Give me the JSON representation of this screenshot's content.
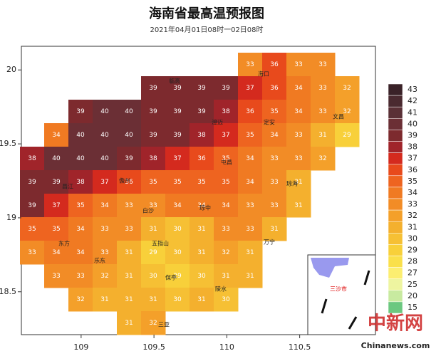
{
  "title": "海南省最高温预报图",
  "subtitle": "2021年04月01日08时一02日08时",
  "xlim": [
    108.59,
    111.02
  ],
  "ylim": [
    18.21,
    20.16
  ],
  "xticks": [
    109,
    109.5,
    110,
    110.5
  ],
  "yticks": [
    18.5,
    19,
    19.5,
    20
  ],
  "colorbar": {
    "levels": [
      43,
      42,
      41,
      40,
      39,
      38,
      37,
      36,
      35,
      34,
      33,
      32,
      31,
      30,
      29,
      28,
      27,
      25,
      20,
      15
    ],
    "colors": [
      "#3a2228",
      "#4a2a30",
      "#5a3036",
      "#6b2f35",
      "#7d2a2e",
      "#a0242a",
      "#d42a1e",
      "#e84a1c",
      "#ee6420",
      "#f07a22",
      "#f28c26",
      "#f4a02a",
      "#f4b02e",
      "#f6c034",
      "#f8d03a",
      "#fae04a",
      "#fcee70",
      "#eef5a0",
      "#c8eaa0",
      "#6cc880"
    ]
  },
  "grid_values": [
    [
      null,
      null,
      null,
      null,
      null,
      null,
      null,
      null,
      null,
      33,
      36,
      33,
      33,
      null
    ],
    [
      null,
      null,
      null,
      null,
      null,
      39,
      39,
      39,
      39,
      37,
      36,
      34,
      33,
      32
    ],
    [
      null,
      null,
      39,
      40,
      40,
      39,
      39,
      39,
      38,
      36,
      35,
      34,
      33,
      32
    ],
    [
      null,
      34,
      40,
      40,
      40,
      39,
      39,
      38,
      37,
      35,
      34,
      33,
      31,
      29
    ],
    [
      38,
      40,
      40,
      40,
      39,
      38,
      37,
      36,
      35,
      34,
      33,
      33,
      32,
      null
    ],
    [
      39,
      39,
      38,
      37,
      36,
      35,
      35,
      35,
      35,
      34,
      33,
      31,
      null,
      null
    ],
    [
      39,
      37,
      35,
      34,
      33,
      33,
      34,
      34,
      34,
      33,
      33,
      31,
      null,
      null
    ],
    [
      35,
      35,
      34,
      33,
      33,
      31,
      30,
      31,
      33,
      33,
      31,
      null,
      null,
      null
    ],
    [
      33,
      34,
      34,
      33,
      31,
      29,
      30,
      31,
      32,
      31,
      null,
      null,
      null,
      null
    ],
    [
      null,
      33,
      33,
      32,
      31,
      30,
      29,
      30,
      31,
      31,
      null,
      null,
      null,
      null
    ],
    [
      null,
      null,
      32,
      31,
      31,
      31,
      30,
      31,
      30,
      null,
      null,
      null,
      null,
      null
    ],
    [
      null,
      null,
      null,
      null,
      31,
      32,
      null,
      null,
      null,
      null,
      null,
      null,
      null,
      null
    ]
  ],
  "cities": [
    "海口",
    "临高",
    "澄迈",
    "定安",
    "文昌",
    "儋州",
    "屯昌",
    "琼海",
    "琼中",
    "昌江",
    "白沙",
    "万宁",
    "五指山",
    "东方",
    "乐东",
    "保亭",
    "陵水",
    "三亚"
  ],
  "inset_label": "三沙市",
  "watermark": [
    "中新网",
    "Chinanews.com"
  ]
}
